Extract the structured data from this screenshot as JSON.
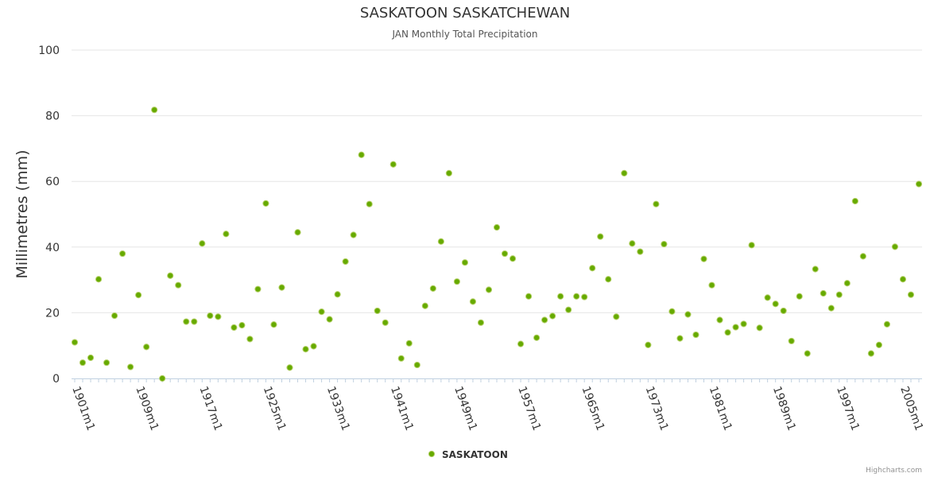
{
  "chart_data": {
    "type": "scatter",
    "title": "SASKATOON SASKATCHEWAN",
    "subtitle": "JAN Monthly Total Precipitation",
    "ylabel": "Millimetres (mm)",
    "xlabel": "",
    "ylim": [
      0,
      100
    ],
    "yticks": [
      0,
      20,
      40,
      60,
      80,
      100
    ],
    "xtick_labels": [
      "1901m1",
      "1909m1",
      "1917m1",
      "1925m1",
      "1933m1",
      "1941m1",
      "1949m1",
      "1957m1",
      "1965m1",
      "1973m1",
      "1981m1",
      "1989m1",
      "1997m1",
      "2005m1"
    ],
    "x_start_year": 1901,
    "x_end_year": 2007,
    "legend": "bottom-center",
    "series": [
      {
        "name": "SASKATOON",
        "color": "#66aa00",
        "years": [
          1901,
          1902,
          1903,
          1904,
          1905,
          1906,
          1907,
          1908,
          1909,
          1910,
          1911,
          1912,
          1913,
          1914,
          1915,
          1916,
          1917,
          1918,
          1919,
          1920,
          1921,
          1922,
          1923,
          1924,
          1925,
          1926,
          1927,
          1928,
          1929,
          1930,
          1931,
          1932,
          1933,
          1934,
          1935,
          1936,
          1937,
          1938,
          1939,
          1940,
          1941,
          1942,
          1943,
          1944,
          1945,
          1946,
          1947,
          1948,
          1949,
          1950,
          1951,
          1952,
          1953,
          1954,
          1955,
          1956,
          1957,
          1958,
          1959,
          1960,
          1961,
          1962,
          1963,
          1964,
          1965,
          1966,
          1967,
          1968,
          1969,
          1970,
          1971,
          1972,
          1973,
          1974,
          1975,
          1976,
          1977,
          1978,
          1979,
          1980,
          1981,
          1982,
          1983,
          1984,
          1985,
          1986,
          1987,
          1988,
          1989,
          1990,
          1991,
          1992,
          1993,
          1994,
          1995,
          1996,
          1997,
          1998,
          1999,
          2000,
          2001,
          2002,
          2003,
          2004,
          2005,
          2006,
          2007
        ],
        "values": [
          11.0,
          4.8,
          6.3,
          30.2,
          4.8,
          19.1,
          38.0,
          3.5,
          25.4,
          9.6,
          81.8,
          0.0,
          31.3,
          28.4,
          17.3,
          17.3,
          41.1,
          19.1,
          18.8,
          44.0,
          15.5,
          16.2,
          12.0,
          27.2,
          53.3,
          16.4,
          27.7,
          3.3,
          44.5,
          8.9,
          9.8,
          20.3,
          18.0,
          25.6,
          35.6,
          43.7,
          68.1,
          53.1,
          20.6,
          17.0,
          65.2,
          6.1,
          10.7,
          4.1,
          22.1,
          27.4,
          41.7,
          62.5,
          29.5,
          35.3,
          23.4,
          17.0,
          27.0,
          46.0,
          38.0,
          36.5,
          10.5,
          25.0,
          12.4,
          17.8,
          19.0,
          25.0,
          20.9,
          25.0,
          24.8,
          33.6,
          43.2,
          30.2,
          18.8,
          62.5,
          41.1,
          38.6,
          10.2,
          53.1,
          40.9,
          20.4,
          12.2,
          19.5,
          13.3,
          36.4,
          28.4,
          17.8,
          14.0,
          15.6,
          16.6,
          40.6,
          15.4,
          24.6,
          22.7,
          20.6,
          11.4,
          25.0,
          7.6,
          33.3,
          25.9,
          21.4,
          25.5,
          29.0,
          54.0,
          37.2,
          7.6,
          10.2,
          16.5,
          40.1,
          30.2,
          25.5,
          59.2
        ]
      }
    ]
  },
  "credits": "Highcharts.com"
}
